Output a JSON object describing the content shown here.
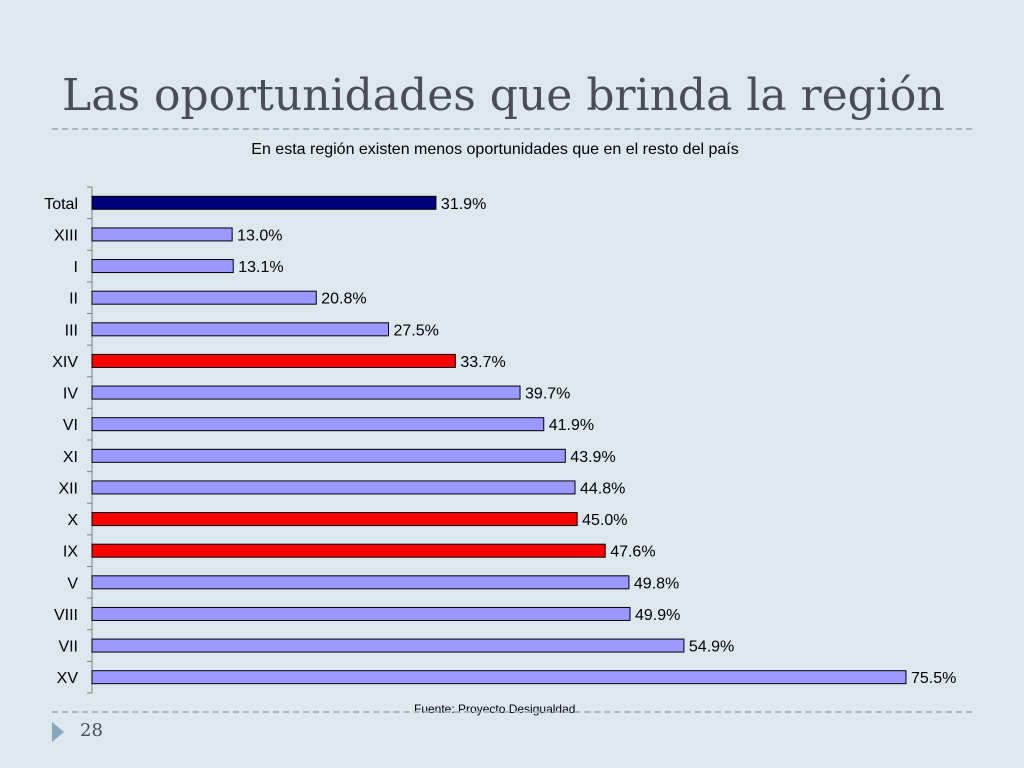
{
  "slide": {
    "title": "Las oportunidades que brinda la región",
    "page_number": "28"
  },
  "chart_data": {
    "type": "bar",
    "orientation": "horizontal",
    "title": "",
    "subtitle": "En esta región existen menos oportunidades que en el resto del país",
    "source": "Fuente: Proyecto Desigualdad.",
    "categories": [
      "Total",
      "XIII",
      "I",
      "II",
      "III",
      "XIV",
      "IV",
      "VI",
      "XI",
      "XII",
      "X",
      "IX",
      "V",
      "VIII",
      "VII",
      "XV"
    ],
    "values": [
      31.9,
      13.0,
      13.1,
      20.8,
      27.5,
      33.7,
      39.7,
      41.9,
      43.9,
      44.8,
      45.0,
      47.6,
      49.8,
      49.9,
      54.9,
      75.5
    ],
    "value_labels": [
      "31.9%",
      "13.0%",
      "13.1%",
      "20.8%",
      "27.5%",
      "33.7%",
      "39.7%",
      "41.9%",
      "43.9%",
      "44.8%",
      "45.0%",
      "47.6%",
      "49.8%",
      "49.9%",
      "54.9%",
      "75.5%"
    ],
    "bar_colors": [
      "#00007a",
      "#9999ff",
      "#9999ff",
      "#9999ff",
      "#9999ff",
      "#ff0000",
      "#9999ff",
      "#9999ff",
      "#9999ff",
      "#9999ff",
      "#ff0000",
      "#ff0000",
      "#9999ff",
      "#9999ff",
      "#9999ff",
      "#9999ff"
    ],
    "xlabel": "",
    "ylabel": "",
    "xlim": [
      0,
      75.5
    ],
    "grid": false,
    "legend": "none"
  }
}
